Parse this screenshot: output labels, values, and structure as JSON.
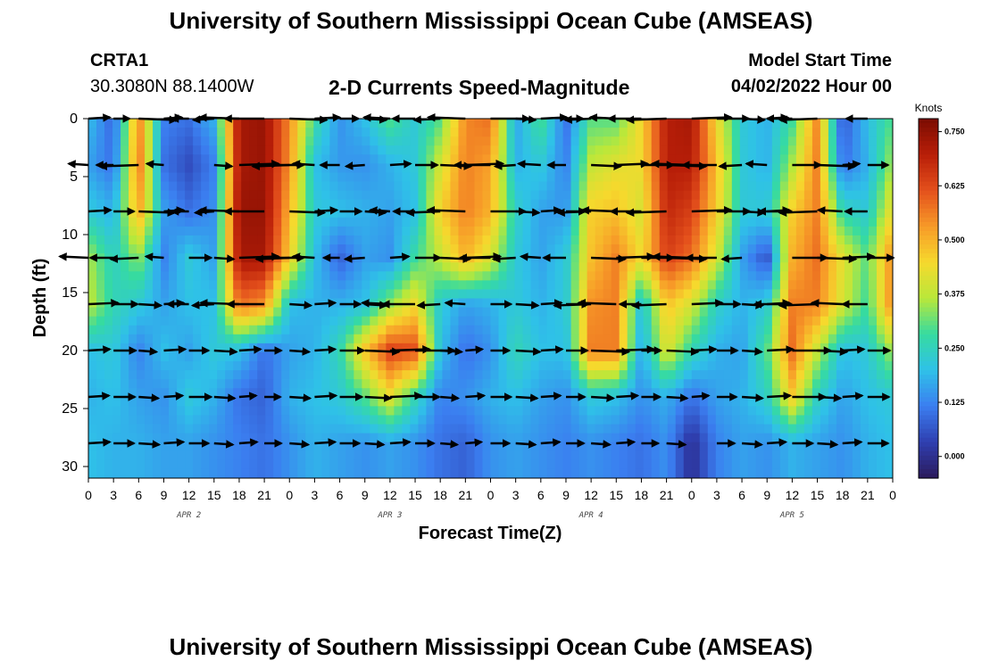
{
  "header": {
    "title": "University of Southern Mississippi Ocean Cube (AMSEAS)",
    "station_id": "CRTA1",
    "coordinates": "30.3080N  88.1400W",
    "chart_title": "2-D Currents Speed-Magnitude",
    "model_start_label": "Model Start Time",
    "model_start_value": "04/02/2022 Hour 00"
  },
  "footer": {
    "title": "University of Southern Mississippi Ocean Cube (AMSEAS)"
  },
  "chart_data": {
    "type": "heatmap",
    "title": "2-D Currents Speed-Magnitude",
    "xlabel": "Forecast Time(Z)",
    "ylabel": "Depth (ft)",
    "x_ticks": [
      "0",
      "3",
      "6",
      "9",
      "12",
      "15",
      "18",
      "21",
      "0",
      "3",
      "6",
      "9",
      "12",
      "15",
      "18",
      "21",
      "0",
      "3",
      "6",
      "9",
      "12",
      "15",
      "18",
      "21",
      "0",
      "3",
      "6",
      "9",
      "12",
      "15",
      "18",
      "21",
      "0"
    ],
    "x_range_hours": [
      0,
      96
    ],
    "date_labels": [
      {
        "label": "APR 2",
        "hour": 12
      },
      {
        "label": "APR 3",
        "hour": 36
      },
      {
        "label": "APR 4",
        "hour": 60
      },
      {
        "label": "APR 5",
        "hour": 84
      }
    ],
    "y_ticks": [
      0,
      5,
      10,
      15,
      20,
      25,
      30
    ],
    "ylim": [
      0,
      31
    ],
    "colorbar": {
      "unit_label": "Knots",
      "ticks": [
        "0.750",
        "0.625",
        "0.500",
        "0.375",
        "0.250",
        "0.125",
        "0.000"
      ],
      "range": [
        -0.05,
        0.78
      ],
      "colors": [
        "#2b1a5c",
        "#2f3fb0",
        "#3b7ef0",
        "#2fc1e8",
        "#36dba0",
        "#b9e83a",
        "#f6d92d",
        "#f79a28",
        "#e4501c",
        "#b81e08",
        "#7a0c02"
      ]
    },
    "depth_levels_ft": [
      0,
      4,
      8,
      12,
      16,
      20,
      24,
      28
    ],
    "time_hours": [
      0,
      3,
      6,
      9,
      12,
      15,
      18,
      21,
      24,
      27,
      30,
      33,
      36,
      39,
      42,
      45,
      48,
      51,
      54,
      57,
      60,
      63,
      66,
      69,
      72,
      75,
      78,
      81,
      84,
      87,
      90,
      93,
      96
    ],
    "speed_knots": [
      [
        0.2,
        0.08,
        0.56,
        0.12,
        0.1,
        0.18,
        0.72,
        0.74,
        0.55,
        0.28,
        0.14,
        0.2,
        0.3,
        0.22,
        0.3,
        0.55,
        0.58,
        0.16,
        0.3,
        0.1,
        0.3,
        0.3,
        0.45,
        0.7,
        0.72,
        0.44,
        0.22,
        0.18,
        0.28,
        0.55,
        0.06,
        0.2,
        0.3
      ],
      [
        0.16,
        0.1,
        0.58,
        0.1,
        0.05,
        0.12,
        0.72,
        0.74,
        0.54,
        0.2,
        0.15,
        0.14,
        0.18,
        0.22,
        0.4,
        0.56,
        0.52,
        0.18,
        0.22,
        0.12,
        0.38,
        0.42,
        0.44,
        0.7,
        0.7,
        0.48,
        0.22,
        0.18,
        0.36,
        0.56,
        0.1,
        0.18,
        0.36
      ],
      [
        0.22,
        0.18,
        0.52,
        0.16,
        0.1,
        0.14,
        0.74,
        0.74,
        0.5,
        0.22,
        0.2,
        0.18,
        0.16,
        0.2,
        0.46,
        0.56,
        0.5,
        0.24,
        0.16,
        0.15,
        0.46,
        0.48,
        0.4,
        0.68,
        0.64,
        0.46,
        0.22,
        0.22,
        0.46,
        0.56,
        0.26,
        0.22,
        0.44
      ],
      [
        0.36,
        0.24,
        0.34,
        0.12,
        0.22,
        0.16,
        0.72,
        0.72,
        0.46,
        0.2,
        0.08,
        0.16,
        0.14,
        0.28,
        0.38,
        0.5,
        0.4,
        0.22,
        0.16,
        0.22,
        0.48,
        0.56,
        0.44,
        0.64,
        0.58,
        0.4,
        0.16,
        0.06,
        0.5,
        0.58,
        0.42,
        0.3,
        0.56
      ],
      [
        0.38,
        0.26,
        0.22,
        0.16,
        0.2,
        0.2,
        0.58,
        0.54,
        0.2,
        0.18,
        0.18,
        0.2,
        0.34,
        0.44,
        0.22,
        0.16,
        0.18,
        0.22,
        0.18,
        0.22,
        0.54,
        0.56,
        0.2,
        0.48,
        0.4,
        0.24,
        0.18,
        0.22,
        0.56,
        0.56,
        0.4,
        0.28,
        0.56
      ],
      [
        0.2,
        0.22,
        0.12,
        0.2,
        0.16,
        0.22,
        0.2,
        0.1,
        0.16,
        0.18,
        0.26,
        0.48,
        0.64,
        0.62,
        0.2,
        0.1,
        0.14,
        0.26,
        0.2,
        0.2,
        0.56,
        0.56,
        0.16,
        0.42,
        0.26,
        0.18,
        0.16,
        0.3,
        0.58,
        0.38,
        0.2,
        0.22,
        0.36
      ],
      [
        0.18,
        0.2,
        0.16,
        0.14,
        0.22,
        0.18,
        0.1,
        0.08,
        0.18,
        0.2,
        0.22,
        0.3,
        0.42,
        0.26,
        0.12,
        0.14,
        0.18,
        0.2,
        0.16,
        0.14,
        0.22,
        0.2,
        0.14,
        0.18,
        0.1,
        0.16,
        0.18,
        0.24,
        0.46,
        0.24,
        0.16,
        0.2,
        0.22
      ],
      [
        0.2,
        0.18,
        0.18,
        0.16,
        0.16,
        0.14,
        0.12,
        0.1,
        0.14,
        0.18,
        0.16,
        0.14,
        0.16,
        0.14,
        0.1,
        0.08,
        0.14,
        0.16,
        0.14,
        0.12,
        0.14,
        0.12,
        0.1,
        0.14,
        0.0,
        0.12,
        0.16,
        0.14,
        0.18,
        0.16,
        0.14,
        0.18,
        0.2
      ]
    ],
    "vector_note": "Current direction vectors drawn at each depth level"
  }
}
